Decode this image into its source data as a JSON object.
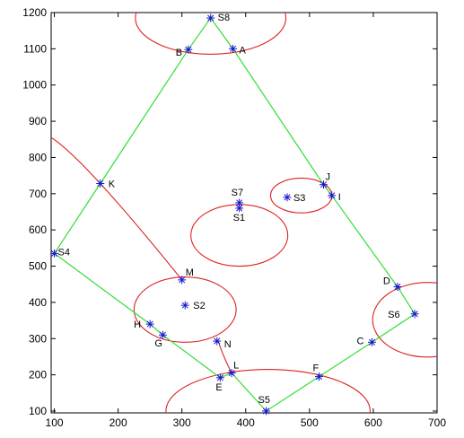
{
  "chart_data": {
    "type": "scatter",
    "title": "",
    "xlabel": "",
    "ylabel": "",
    "xlim": [
      95,
      700
    ],
    "ylim": [
      95,
      1200
    ],
    "x_ticks": [
      100,
      200,
      300,
      400,
      500,
      600,
      700
    ],
    "y_ticks": [
      100,
      200,
      300,
      400,
      500,
      600,
      700,
      800,
      900,
      1000,
      1100,
      1200
    ],
    "grid": false,
    "colors": {
      "polygon": "#33dd33",
      "circles": "#dd2222",
      "markers": "#1515cc"
    },
    "points": [
      {
        "label": "S8",
        "x": 345,
        "y": 1185
      },
      {
        "label": "A",
        "x": 380,
        "y": 1100
      },
      {
        "label": "B",
        "x": 310,
        "y": 1098
      },
      {
        "label": "J",
        "x": 522,
        "y": 725
      },
      {
        "label": "I",
        "x": 535,
        "y": 695
      },
      {
        "label": "K",
        "x": 172,
        "y": 728
      },
      {
        "label": "S7",
        "x": 390,
        "y": 675
      },
      {
        "label": "S3",
        "x": 465,
        "y": 690
      },
      {
        "label": "S1",
        "x": 390,
        "y": 660
      },
      {
        "label": "S4",
        "x": 100,
        "y": 535
      },
      {
        "label": "M",
        "x": 300,
        "y": 462
      },
      {
        "label": "D",
        "x": 638,
        "y": 443
      },
      {
        "label": "S2",
        "x": 305,
        "y": 392
      },
      {
        "label": "S6",
        "x": 665,
        "y": 368
      },
      {
        "label": "H",
        "x": 250,
        "y": 340
      },
      {
        "label": "G",
        "x": 270,
        "y": 310
      },
      {
        "label": "N",
        "x": 355,
        "y": 293
      },
      {
        "label": "C",
        "x": 598,
        "y": 290
      },
      {
        "label": "L",
        "x": 378,
        "y": 205
      },
      {
        "label": "F",
        "x": 515,
        "y": 195
      },
      {
        "label": "E",
        "x": 360,
        "y": 192
      },
      {
        "label": "S5",
        "x": 432,
        "y": 100
      }
    ],
    "polygon": [
      "S8",
      "A",
      "J",
      "I",
      "D",
      "S6",
      "C",
      "F",
      "S5",
      "L",
      "E",
      "G",
      "H",
      "S4",
      "K",
      "B",
      "S8"
    ],
    "circles": [
      {
        "cx": 345,
        "cy": 1185,
        "rx": 118,
        "ry": 100
      },
      {
        "cx": 390,
        "cy": 585,
        "rx": 76,
        "ry": 85
      },
      {
        "cx": 487,
        "cy": 695,
        "rx": 48,
        "ry": 48
      },
      {
        "cx": 305,
        "cy": 380,
        "rx": 80,
        "ry": 90
      },
      {
        "cx": 685,
        "cy": 352,
        "rx": 86,
        "ry": 103
      },
      {
        "cx": 435,
        "cy": 100,
        "rx": 160,
        "ry": 115
      }
    ],
    "curves": [
      {
        "from": [
          95,
          855
        ],
        "through": [
          172,
          728
        ],
        "to": [
          300,
          462
        ]
      },
      {
        "from": [
          357,
          293
        ],
        "through": [
          366,
          250
        ],
        "to": [
          378,
          205
        ]
      }
    ]
  }
}
